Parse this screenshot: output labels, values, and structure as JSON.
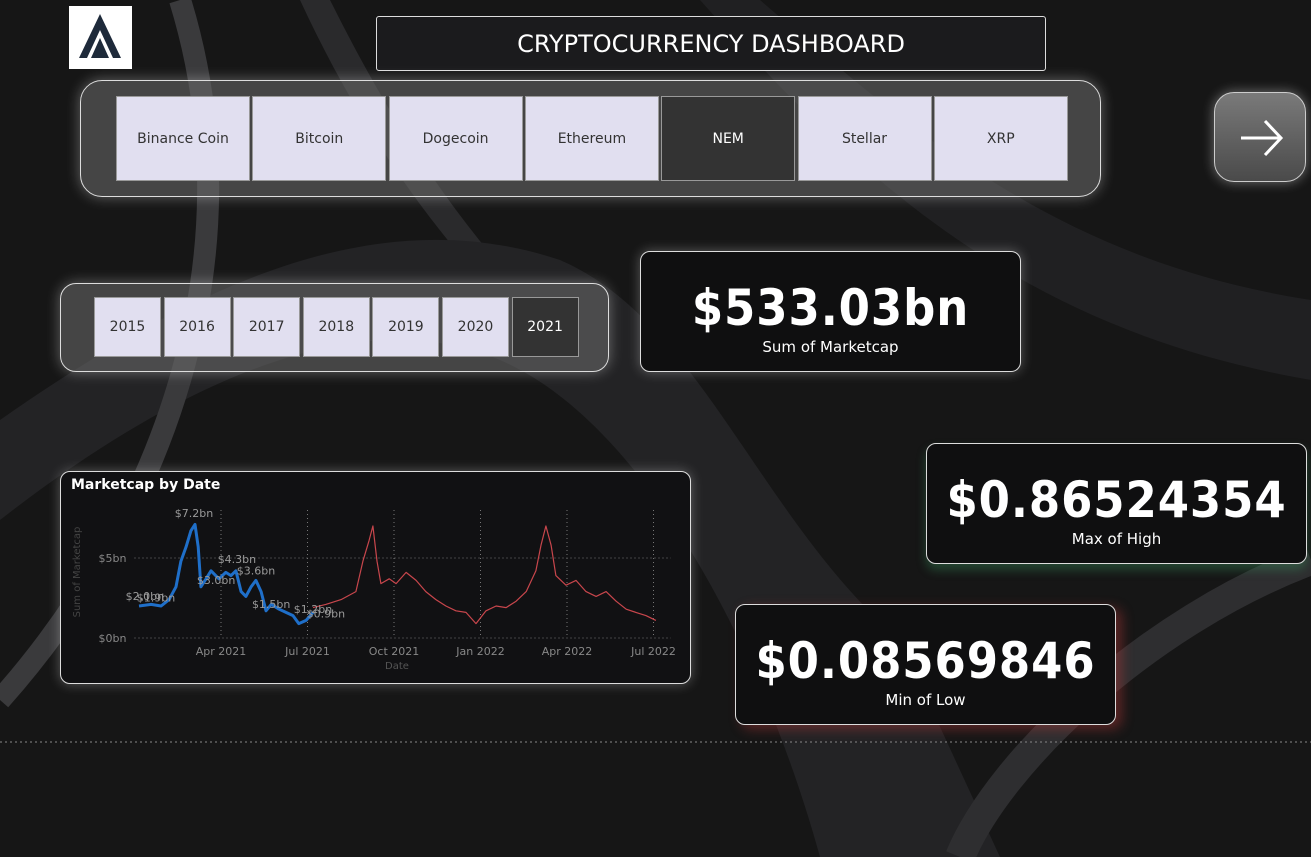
{
  "header": {
    "title": "CRYPTOCURRENCY DASHBOARD"
  },
  "coin_slicer": {
    "options": [
      "Binance Coin",
      "Bitcoin",
      "Dogecoin",
      "Ethereum",
      "NEM",
      "Stellar",
      "XRP"
    ],
    "selected": 4
  },
  "year_slicer": {
    "options": [
      "2015",
      "2016",
      "2017",
      "2018",
      "2019",
      "2020",
      "2021"
    ],
    "selected": 6
  },
  "cards": [
    {
      "value": "$533.03bn",
      "label": "Sum of Marketcap"
    },
    {
      "value": "$0.86524354",
      "label": "Max of High"
    },
    {
      "value": "$0.08569846",
      "label": "Min of Low"
    }
  ],
  "chart_data": {
    "type": "line",
    "title": "Marketcap by Date",
    "x_label": "Date",
    "y_label": "Sum of Marketcap",
    "xlim": [
      2021.0,
      2022.55
    ],
    "ylim": [
      0,
      8
    ],
    "xticks": [
      {
        "value": 2021.25,
        "label": "Apr 2021"
      },
      {
        "value": 2021.5,
        "label": "Jul 2021"
      },
      {
        "value": 2021.75,
        "label": "Oct 2021"
      },
      {
        "value": 2022.0,
        "label": "Jan 2022"
      },
      {
        "value": 2022.25,
        "label": "Apr 2022"
      },
      {
        "value": 2022.5,
        "label": "Jul 2022"
      }
    ],
    "yticks": [
      {
        "value": 0,
        "label": "$0bn"
      },
      {
        "value": 5,
        "label": "$5bn"
      }
    ],
    "grid": true,
    "series": [
      {
        "color": "#1f6fc9",
        "x": [
          2021.013,
          2021.048,
          2021.077,
          2021.1,
          2021.12,
          2021.134,
          2021.149,
          2021.163,
          2021.175,
          2021.184,
          2021.192,
          2021.207,
          2021.221,
          2021.244,
          2021.264,
          2021.279,
          2021.293,
          2021.308,
          2021.322,
          2021.337,
          2021.351,
          2021.366,
          2021.38,
          2021.395,
          2021.418,
          2021.438,
          2021.458,
          2021.475,
          2021.496,
          2021.516
        ],
        "values": [
          2.0,
          2.1,
          2.0,
          2.4,
          3.2,
          4.8,
          5.7,
          6.7,
          7.1,
          5.7,
          3.2,
          3.7,
          4.2,
          3.7,
          4.1,
          3.9,
          4.2,
          2.9,
          2.6,
          3.2,
          3.6,
          2.9,
          1.7,
          2.1,
          1.8,
          1.6,
          1.4,
          0.9,
          1.1,
          1.6
        ]
      },
      {
        "color": "#c8464c",
        "x": [
          2021.516,
          2021.553,
          2021.597,
          2021.64,
          2021.66,
          2021.678,
          2021.689,
          2021.701,
          2021.712,
          2021.736,
          2021.756,
          2021.785,
          2021.814,
          2021.842,
          2021.871,
          2021.9,
          2021.929,
          2021.958,
          2021.987,
          2022.016,
          2022.045,
          2022.074,
          2022.103,
          2022.132,
          2022.16,
          2022.175,
          2022.189,
          2022.204,
          2022.218,
          2022.247,
          2022.276,
          2022.305,
          2022.334,
          2022.363,
          2022.392,
          2022.421,
          2022.449,
          2022.478,
          2022.507
        ],
        "values": [
          1.9,
          2.1,
          2.4,
          2.9,
          4.8,
          6.1,
          7.0,
          4.8,
          3.4,
          3.7,
          3.4,
          4.1,
          3.6,
          2.9,
          2.4,
          2.0,
          1.7,
          1.6,
          0.9,
          1.7,
          2.0,
          1.9,
          2.3,
          2.9,
          4.2,
          5.8,
          7.0,
          5.8,
          3.9,
          3.3,
          3.6,
          2.9,
          2.6,
          2.9,
          2.3,
          1.8,
          1.6,
          1.4,
          1.1
        ]
      }
    ],
    "data_labels": [
      {
        "x": 2021.172,
        "value": 7.2,
        "label": "$7.2bn"
      },
      {
        "x": 2021.296,
        "value": 4.3,
        "label": "$4.3bn"
      },
      {
        "x": 2021.03,
        "value": 2.0,
        "label": "$2.0bn"
      },
      {
        "x": 2021.062,
        "value": 1.9,
        "label": "$1.9bn"
      },
      {
        "x": 2021.236,
        "value": 3.0,
        "label": "$3.0bn"
      },
      {
        "x": 2021.351,
        "value": 3.6,
        "label": "$3.6bn"
      },
      {
        "x": 2021.395,
        "value": 1.5,
        "label": "$1.5bn"
      },
      {
        "x": 2021.516,
        "value": 1.2,
        "label": "$1.2bn"
      },
      {
        "x": 2021.553,
        "value": 0.9,
        "label": "$0.9bn"
      }
    ]
  }
}
